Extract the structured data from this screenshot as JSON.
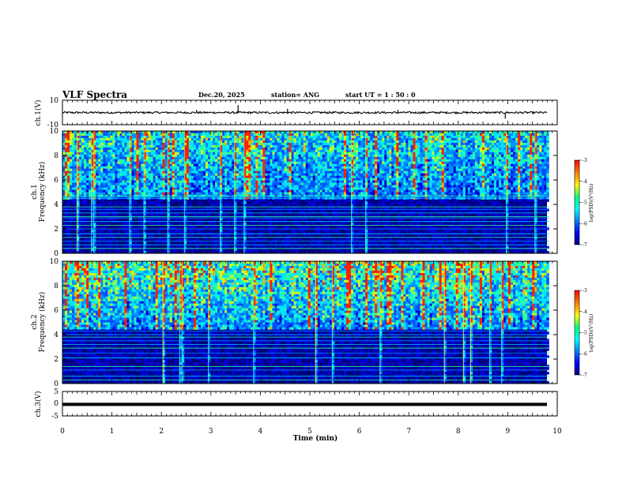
{
  "header": {
    "title": "VLF Spectra",
    "date": "Dec.20, 2025",
    "station": "station= ANG",
    "start_ut": "start  UT =   1 : 50 : 0"
  },
  "chart_data": [
    {
      "type": "line",
      "name": "ch1-waveform",
      "ylabel": "ch.1(V)",
      "ylim": [
        -10,
        10
      ],
      "yticks": [
        10,
        -10
      ],
      "baseline": -0.1,
      "spikes": [
        {
          "t": 2.71,
          "v": 2.0
        },
        {
          "t": 3.55,
          "v": 6.0
        },
        {
          "t": 4.55,
          "v": 3.0
        },
        {
          "t": 5.5,
          "v": 1.0
        },
        {
          "t": 6.78,
          "v": 2.0
        },
        {
          "t": 8.95,
          "v": -5.0
        }
      ]
    },
    {
      "type": "heatmap",
      "name": "ch1-spectrogram",
      "ylabel_top": "ch.1",
      "ylabel": "Frequency (kHz)",
      "ylim": [
        0,
        10
      ],
      "yticks": [
        0,
        2,
        4,
        6,
        8,
        10
      ],
      "xlim": [
        0,
        9.83
      ],
      "colorbar": {
        "label": "log(PSD)(V²/Hz)",
        "range": [
          -7,
          -3
        ],
        "ticks": [
          "-3",
          "-4",
          "-5",
          "-6",
          "-7"
        ]
      },
      "narrowband_lines_khz": [
        0.4,
        0.7,
        1.0,
        1.3,
        1.6,
        2.0,
        2.3,
        2.6,
        2.9,
        3.0,
        3.3,
        3.6,
        3.8,
        4.5,
        4.6,
        4.7
      ]
    },
    {
      "type": "heatmap",
      "name": "ch2-spectrogram",
      "ylabel_top": "ch.2",
      "ylabel": "Frequency (kHz)",
      "ylim": [
        0,
        10
      ],
      "yticks": [
        0,
        2,
        4,
        6,
        8,
        10
      ],
      "xlim": [
        0,
        9.83
      ],
      "colorbar": {
        "label": "log(PSD)(V²/Hz)",
        "range": [
          -7,
          -3
        ],
        "ticks": [
          "-3",
          "-4",
          "-5",
          "-6",
          "-7"
        ]
      },
      "narrowband_lines_khz": [
        0.3,
        0.6,
        1.1,
        1.4,
        2.1,
        2.5,
        2.9,
        3.2,
        3.5,
        3.8,
        4.0,
        4.3
      ]
    },
    {
      "type": "line",
      "name": "ch3-waveform",
      "ylabel": "ch.3(V)",
      "ylim": [
        -5,
        5
      ],
      "yticks": [
        5,
        0,
        -5
      ],
      "baseline": -0.3
    }
  ],
  "xaxis": {
    "label": "Time (min)",
    "range": [
      0,
      10
    ],
    "ticks": [
      "0",
      "1",
      "2",
      "3",
      "4",
      "5",
      "6",
      "7",
      "8",
      "9",
      "10"
    ]
  },
  "colors": {
    "spectrum": [
      "#00007f",
      "#0000ff",
      "#0080ff",
      "#00ffff",
      "#00ff7f",
      "#ffff00",
      "#ff8000",
      "#ff0000"
    ]
  }
}
